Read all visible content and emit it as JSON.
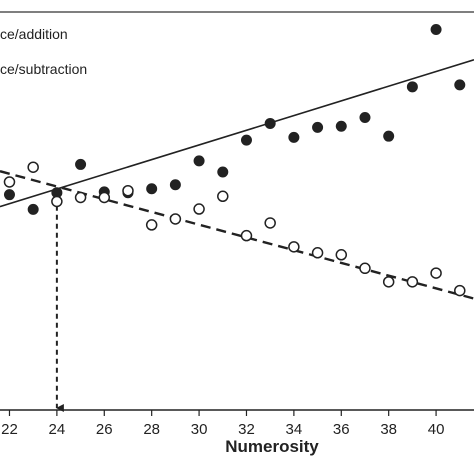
{
  "chart_data": {
    "type": "scatter",
    "xlabel": "Numerosity",
    "xlim": [
      21.6,
      41.6
    ],
    "ylim": [
      0,
      1
    ],
    "x_ticks": [
      22,
      24,
      26,
      28,
      30,
      32,
      34,
      36,
      38,
      40
    ],
    "grid": false,
    "legend": {
      "placement": "top-left",
      "entries": [
        "ce/addition",
        "ce/subtraction"
      ]
    },
    "series": [
      {
        "marker": "filled-circle",
        "color": "#222222",
        "trendline": "solid",
        "points": [
          {
            "x": 22,
            "y": 0.541
          },
          {
            "x": 23,
            "y": 0.504
          },
          {
            "x": 24,
            "y": 0.546
          },
          {
            "x": 25,
            "y": 0.617
          },
          {
            "x": 26,
            "y": 0.548
          },
          {
            "x": 27,
            "y": 0.546
          },
          {
            "x": 28,
            "y": 0.556
          },
          {
            "x": 29,
            "y": 0.566
          },
          {
            "x": 30,
            "y": 0.626
          },
          {
            "x": 31,
            "y": 0.598
          },
          {
            "x": 32,
            "y": 0.678
          },
          {
            "x": 33,
            "y": 0.72
          },
          {
            "x": 34,
            "y": 0.685
          },
          {
            "x": 35,
            "y": 0.71
          },
          {
            "x": 36,
            "y": 0.713
          },
          {
            "x": 37,
            "y": 0.735
          },
          {
            "x": 38,
            "y": 0.688
          },
          {
            "x": 39,
            "y": 0.812
          },
          {
            "x": 40,
            "y": 0.956
          },
          {
            "x": 41,
            "y": 0.817
          }
        ],
        "fit": {
          "x1": 21.6,
          "y1": 0.511,
          "x2": 41.6,
          "y2": 0.88
        }
      },
      {
        "marker": "open-circle",
        "color": "#222222",
        "trendline": "dashed",
        "points": [
          {
            "x": 22,
            "y": 0.573
          },
          {
            "x": 23,
            "y": 0.61
          },
          {
            "x": 24,
            "y": 0.524
          },
          {
            "x": 25,
            "y": 0.534
          },
          {
            "x": 26,
            "y": 0.534
          },
          {
            "x": 27,
            "y": 0.551
          },
          {
            "x": 28,
            "y": 0.465
          },
          {
            "x": 29,
            "y": 0.48
          },
          {
            "x": 30,
            "y": 0.505
          },
          {
            "x": 31,
            "y": 0.537
          },
          {
            "x": 32,
            "y": 0.438
          },
          {
            "x": 33,
            "y": 0.47
          },
          {
            "x": 34,
            "y": 0.41
          },
          {
            "x": 35,
            "y": 0.395
          },
          {
            "x": 36,
            "y": 0.39
          },
          {
            "x": 37,
            "y": 0.356
          },
          {
            "x": 38,
            "y": 0.322
          },
          {
            "x": 39,
            "y": 0.322
          },
          {
            "x": 40,
            "y": 0.344
          },
          {
            "x": 41,
            "y": 0.3
          }
        ],
        "fit": {
          "x1": 21.6,
          "y1": 0.6,
          "x2": 41.6,
          "y2": 0.28
        }
      }
    ],
    "annotation": {
      "type": "dashed-arrow-down",
      "x": 24,
      "y_start": 0.546,
      "y_end": 0.0
    }
  }
}
